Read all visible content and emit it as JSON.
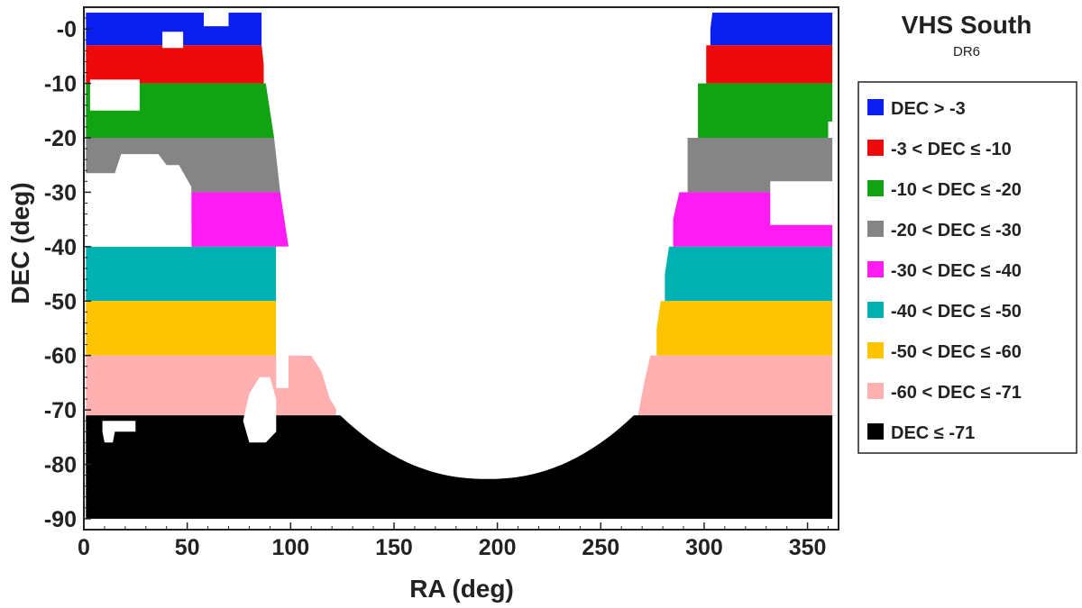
{
  "chart_data": {
    "type": "scatter",
    "title": "VHS South",
    "subtitle": "DR6",
    "xlabel": "RA (deg)",
    "ylabel": "DEC (deg)",
    "xlim": [
      0,
      365
    ],
    "ylim": [
      -92,
      4
    ],
    "x_ticks": [
      0,
      50,
      100,
      150,
      200,
      250,
      300,
      350
    ],
    "y_ticks": [
      0,
      -10,
      -20,
      -30,
      -40,
      -50,
      -60,
      -70,
      -80,
      -90
    ],
    "y_tick_labels": [
      "-0",
      "-10",
      "-20",
      "-30",
      "-40",
      "-50",
      "-60",
      "-70",
      "-80",
      "-90"
    ],
    "grid": false,
    "legend_position": "right",
    "legend": [
      {
        "label": "DEC > -3",
        "color": "#0a1ff0"
      },
      {
        "label": "-3 < DEC ≤ -10",
        "color": "#ee0a0a"
      },
      {
        "label": "-10 < DEC ≤ -20",
        "color": "#12a312"
      },
      {
        "label": "-20 < DEC ≤ -30",
        "color": "#858585"
      },
      {
        "label": "-30 < DEC ≤ -40",
        "color": "#ff1cf2"
      },
      {
        "label": "-40 < DEC ≤ -50",
        "color": "#00b1b1"
      },
      {
        "label": "-50 < DEC ≤ -60",
        "color": "#ffc400"
      },
      {
        "label": "-60 < DEC ≤ -71",
        "color": "#ffb0b0"
      },
      {
        "label": "DEC ≤ -71",
        "color": "#000000"
      }
    ],
    "coverage": [
      {
        "band": "DEC > -3",
        "dec_range": [
          -3,
          3
        ],
        "ra_ranges": [
          [
            1,
            86
          ],
          [
            303,
            362
          ]
        ]
      },
      {
        "band": "-3 < DEC ≤ -10",
        "dec_range": [
          -10,
          -3
        ],
        "ra_ranges": [
          [
            1,
            87
          ],
          [
            301,
            362
          ]
        ]
      },
      {
        "band": "-10 < DEC ≤ -20",
        "dec_range": [
          -20,
          -10
        ],
        "ra_ranges": [
          [
            1,
            92
          ],
          [
            297,
            362
          ]
        ]
      },
      {
        "band": "-20 < DEC ≤ -30",
        "dec_range": [
          -30,
          -20
        ],
        "ra_ranges": [
          [
            1,
            95
          ],
          [
            292,
            362
          ]
        ]
      },
      {
        "band": "-30 < DEC ≤ -40",
        "dec_range": [
          -40,
          -30
        ],
        "ra_ranges": [
          [
            52,
            99
          ],
          [
            285,
            362
          ]
        ]
      },
      {
        "band": "-40 < DEC ≤ -50",
        "dec_range": [
          -50,
          -40
        ],
        "ra_ranges": [
          [
            1,
            93
          ],
          [
            281,
            362
          ]
        ]
      },
      {
        "band": "-50 < DEC ≤ -60",
        "dec_range": [
          -60,
          -50
        ],
        "ra_ranges": [
          [
            1,
            93
          ],
          [
            101,
            106
          ],
          [
            277,
            362
          ]
        ]
      },
      {
        "band": "-60 < DEC ≤ -71",
        "dec_range": [
          -71,
          -60
        ],
        "ra_ranges": [
          [
            1,
            122
          ],
          [
            268,
            362
          ]
        ]
      },
      {
        "band": "DEC ≤ -71",
        "dec_range": [
          -90,
          -71
        ],
        "ra_ranges": [
          [
            1,
            362
          ]
        ]
      }
    ]
  }
}
